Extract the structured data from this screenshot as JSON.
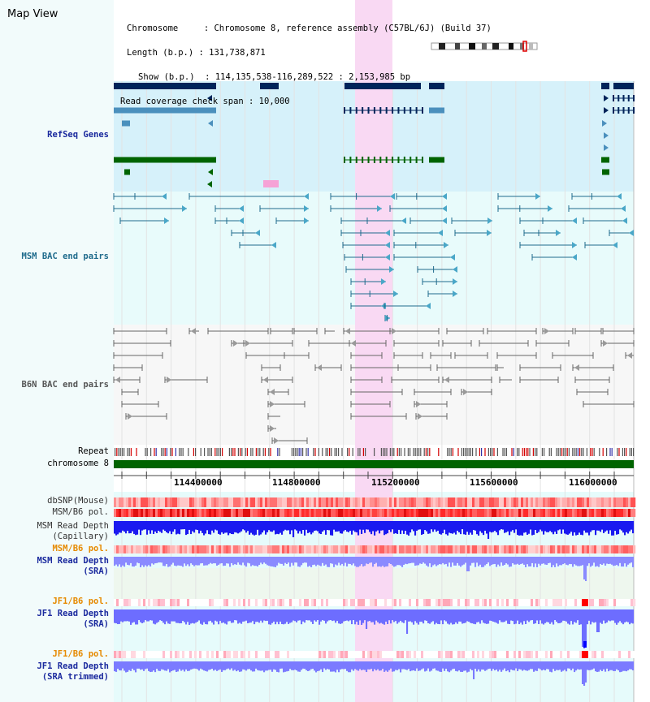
{
  "header": {
    "title": "Map View",
    "info_lines": [
      "Chromosome     : Chromosome 8, reference assembly (C57BL/6J) (Build 37)",
      "Length (b.p.) : 131,738,871",
      "Show (b.p.)  : 114,135,538-116,289,522 : 2,153,985 bp",
      "Read coverage check span : 10,000"
    ]
  },
  "tracks": {
    "refseq": "RefSeq Genes",
    "msm_bac": "MSM BAC end pairs",
    "b6n_bac": "B6N BAC end pairs",
    "repeat": "Repeat",
    "chromosome": "chromosome 8",
    "dbsnp": "dbSNP(Mouse)",
    "msm_b6_pol": "MSM/B6 pol.",
    "msm_depth_cap": "MSM Read Depth",
    "msm_depth_cap_sub": "(Capillary)",
    "msm_b6_pol2": "MSM/B6 pol.",
    "msm_depth_sra": "MSM Read Depth",
    "msm_depth_sra_sub": "(SRA)",
    "jf1_pol": "JF1/B6 pol.",
    "jf1_depth_sra": "JF1 Read Depth",
    "jf1_depth_sra_sub": "(SRA)",
    "jf1_pol2": "JF1/B6 pol.",
    "jf1_depth_trim": "JF1 Read Depth",
    "jf1_depth_trim_sub": "(SRA trimmed)"
  },
  "ruler": {
    "ticks": [
      "114400000",
      "114800000",
      "115200000",
      "115600000",
      "116000000"
    ]
  },
  "colors": {
    "navy": "#00245a",
    "refseq_blue": "#4b90bd",
    "green": "#006400",
    "label_navy": "#1b2a9e",
    "label_teal": "#1f6b8c",
    "label_gray": "#555555",
    "label_orange": "#e68a00",
    "highlight": "#f9d9f3"
  },
  "icons": [
    "chromosome-ideogram-icon"
  ]
}
